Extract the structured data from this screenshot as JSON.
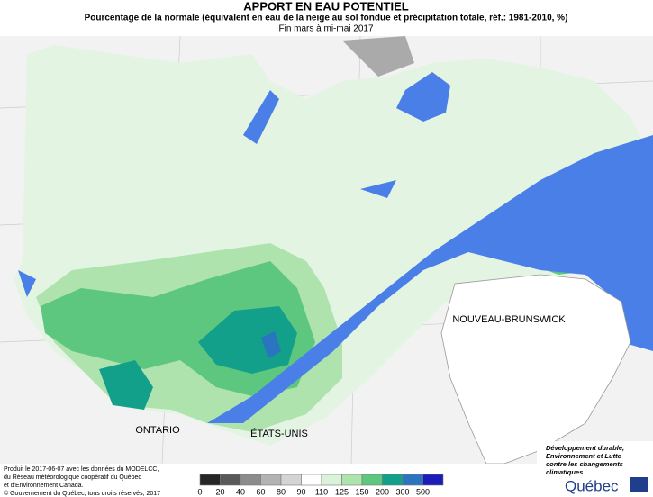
{
  "header": {
    "title": "APPORT EN EAU POTENTIEL",
    "subtitle": "Pourcentage de la normale (équivalent en eau de la neige au sol fondue et précipitation totale, réf.: 1981-2010, %)",
    "period": "Fin mars à mi-mai 2017"
  },
  "map": {
    "labels": [
      "ONTARIO",
      "ÉTATS-UNIS",
      "NOUVEAU-BRUNSWICK"
    ]
  },
  "legend": {
    "ticks": [
      0,
      20,
      40,
      60,
      80,
      90,
      110,
      125,
      150,
      200,
      300,
      500
    ],
    "colors": [
      "#262626",
      "#595959",
      "#8c8c8c",
      "#b3b3b3",
      "#d4d4d4",
      "#ffffff",
      "#d9f2d9",
      "#aee3ae",
      "#5ec77f",
      "#13a08a",
      "#2a74c0",
      "#1c1cb8"
    ]
  },
  "footer": {
    "credits": [
      "Produit le 2017-06-07 avec les données du MODELCC,",
      "du Réseau météorologique coopératif du Québec",
      "et d'Environnement Canada."
    ],
    "copyright": "© Gouvernement du Québec, tous droits réservés, 2017"
  },
  "logo": {
    "lines": [
      "Développement durable,",
      "Environnement et Lutte",
      "contre les changements",
      "climatiques"
    ],
    "name": "Québec"
  }
}
